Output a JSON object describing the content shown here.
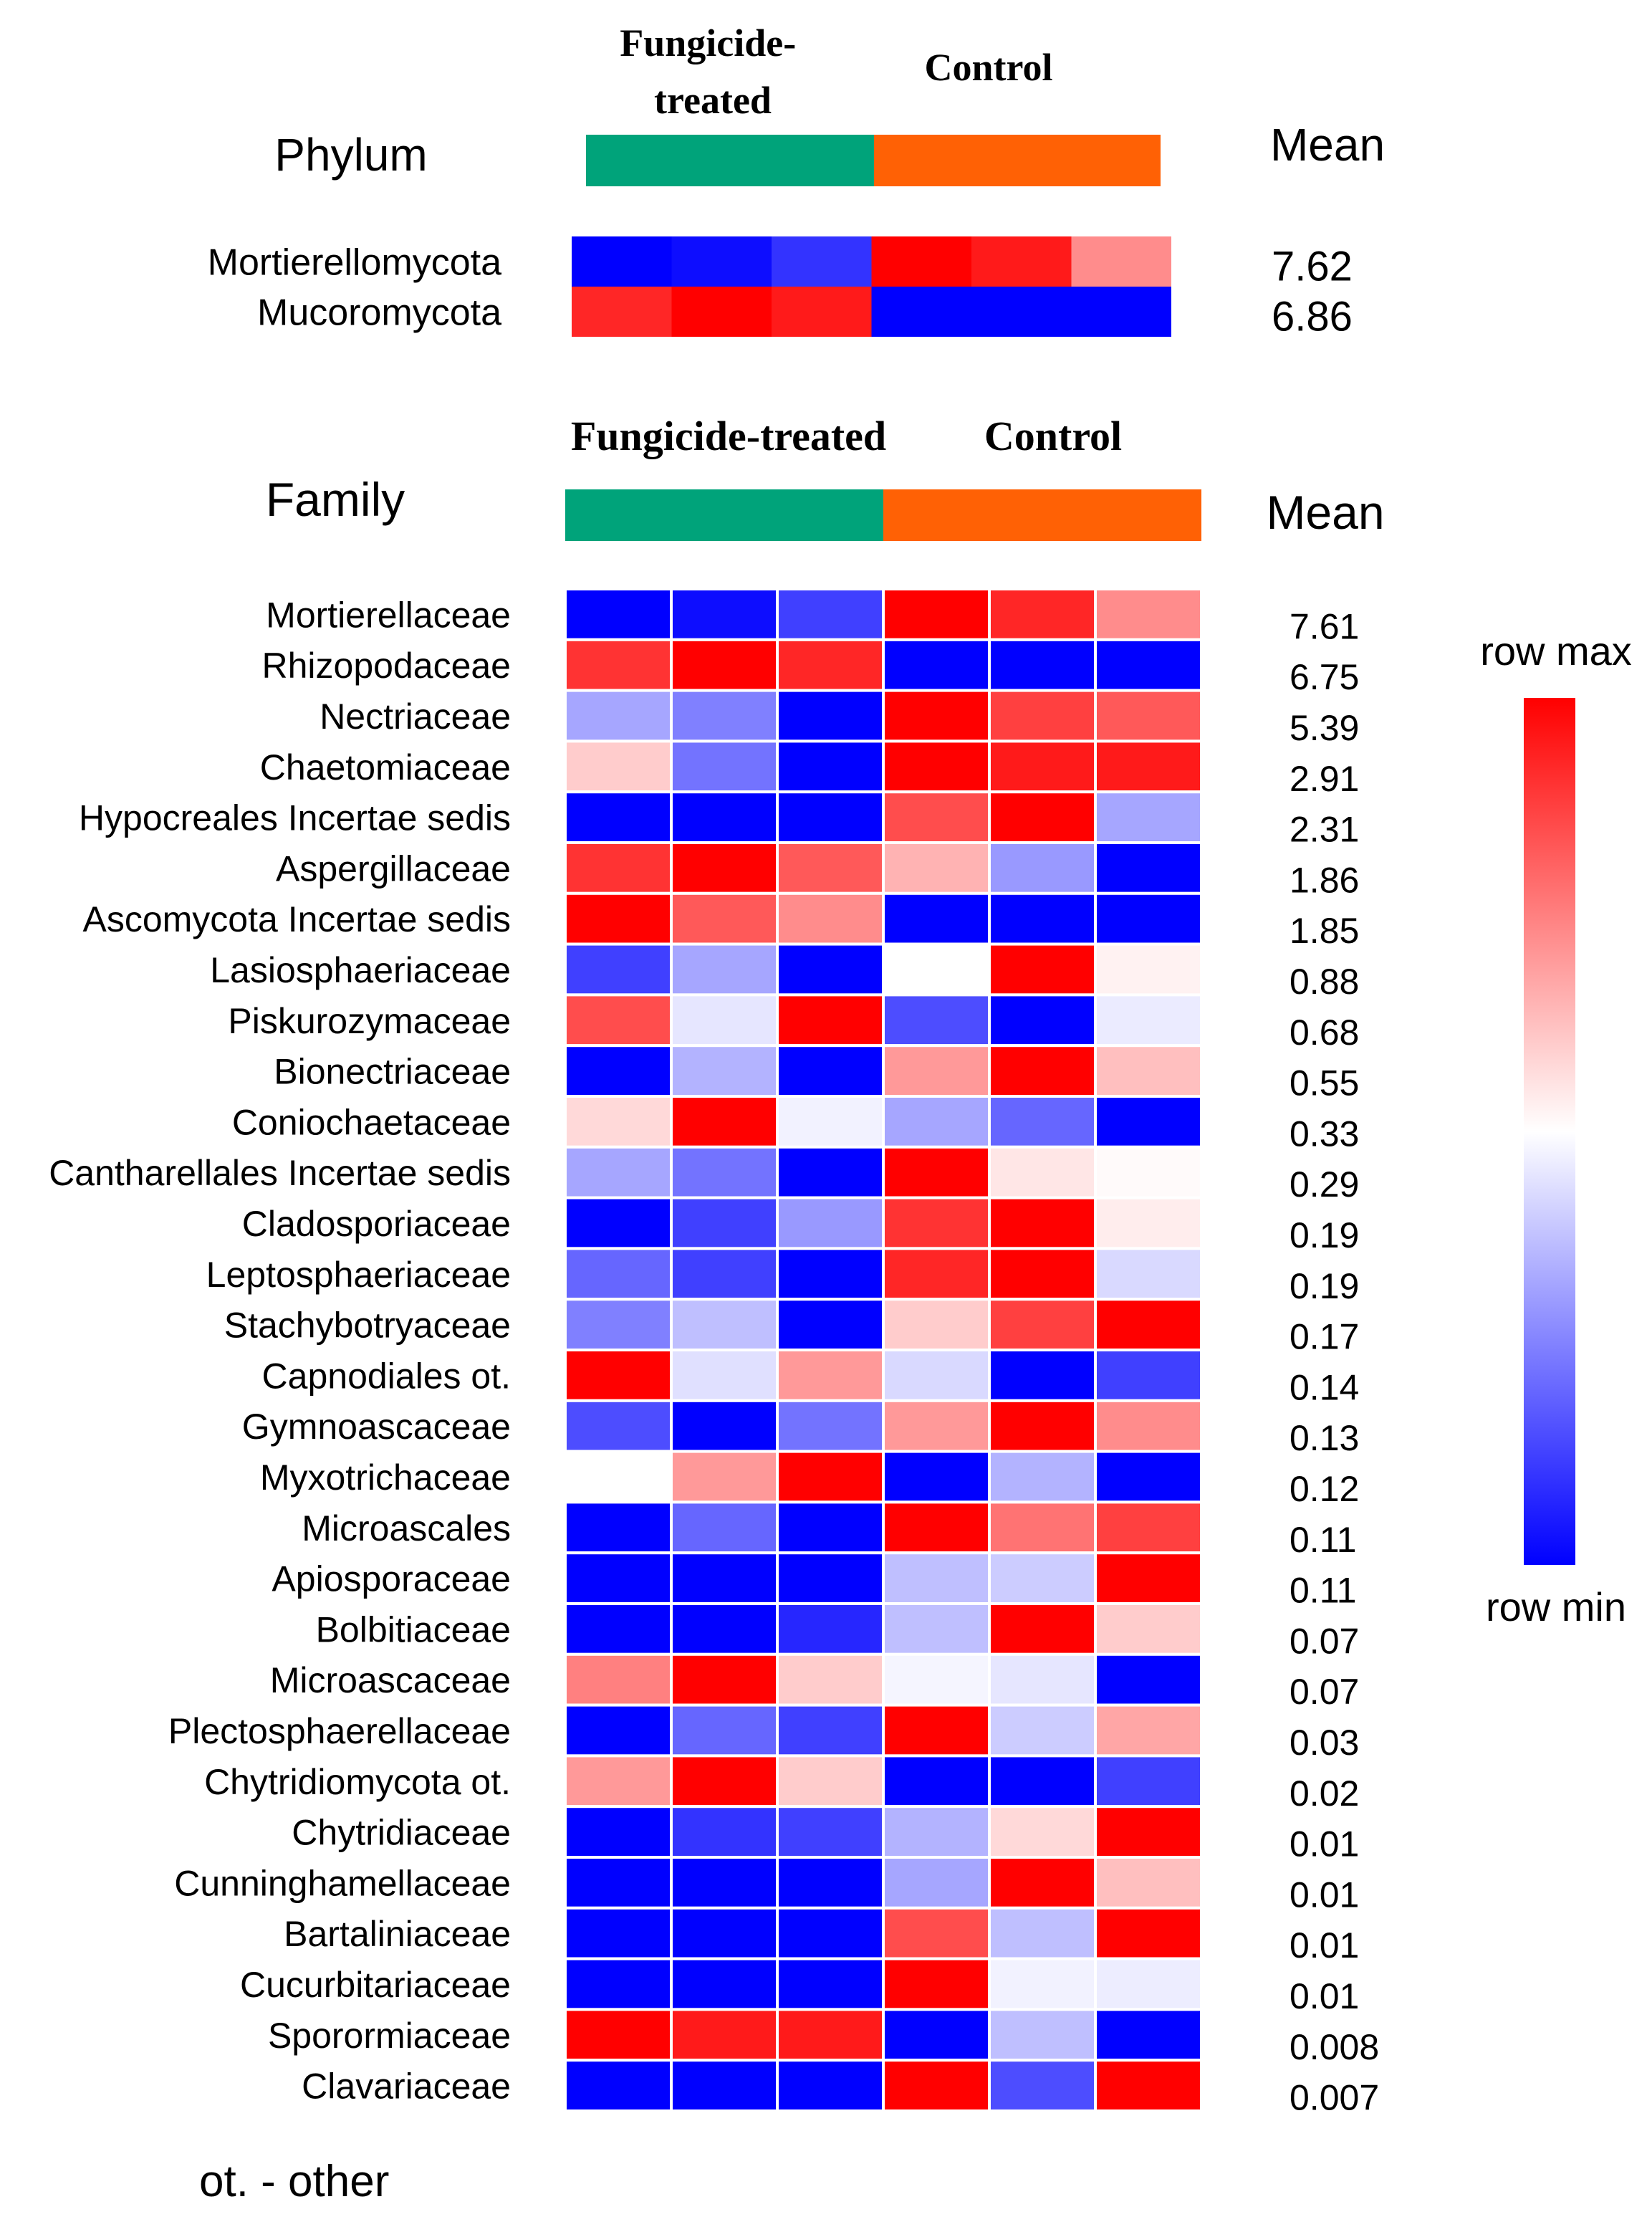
{
  "chart_data": [
    {
      "type": "heatmap",
      "title": "Phylum",
      "group_labels": [
        "Fungicide-\ntreated",
        "Control"
      ],
      "group_colors": [
        "#00A37A",
        "#FF6105"
      ],
      "mean_header": "Mean",
      "value_scale": "row-normalized, -1 = row min, 1 = row max",
      "rows": [
        {
          "label": "Mortierellomycota",
          "mean": "7.62",
          "values": [
            -1,
            -0.95,
            -0.8,
            1,
            0.9,
            0.45
          ]
        },
        {
          "label": "Mucoromycota",
          "mean": "6.86",
          "values": [
            0.85,
            1,
            0.9,
            -1,
            -1,
            -1
          ]
        }
      ]
    },
    {
      "type": "heatmap",
      "title": "Family",
      "group_labels": [
        "Fungicide-treated",
        "Control"
      ],
      "group_colors": [
        "#00A37A",
        "#FF6105"
      ],
      "mean_header": "Mean",
      "value_scale": "row-normalized, -1 = row min, 1 = row max",
      "rows": [
        {
          "label": "Mortierellaceae",
          "mean": "7.61",
          "values": [
            -1,
            -0.95,
            -0.75,
            1,
            0.85,
            0.45
          ]
        },
        {
          "label": "Rhizopodaceae",
          "mean": "6.75",
          "values": [
            0.8,
            1,
            0.85,
            -1,
            -1,
            -1
          ]
        },
        {
          "label": "Nectriaceae",
          "mean": "5.39",
          "values": [
            -0.35,
            -0.5,
            -1,
            1,
            0.75,
            0.65
          ]
        },
        {
          "label": "Chaetomiaceae",
          "mean": "2.91",
          "values": [
            0.2,
            -0.55,
            -1,
            1,
            0.9,
            0.9
          ]
        },
        {
          "label": "Hypocreales Incertae sedis",
          "mean": "2.31",
          "values": [
            -1,
            -1,
            -1,
            0.7,
            1,
            -0.35
          ]
        },
        {
          "label": "Aspergillaceae",
          "mean": "1.86",
          "values": [
            0.8,
            1,
            0.65,
            0.3,
            -0.4,
            -1
          ]
        },
        {
          "label": "Ascomycota Incertae sedis",
          "mean": "1.85",
          "values": [
            1,
            0.65,
            0.45,
            -1,
            -1,
            -1
          ]
        },
        {
          "label": "Lasiosphaeriaceae",
          "mean": "0.88",
          "values": [
            -0.75,
            -0.35,
            -1,
            0,
            1,
            0.05
          ]
        },
        {
          "label": "Piskurozymaceae",
          "mean": "0.68",
          "values": [
            0.7,
            -0.1,
            1,
            -0.7,
            -1,
            -0.08
          ]
        },
        {
          "label": "Bionectriaceae",
          "mean": "0.55",
          "values": [
            -1,
            -0.3,
            -1,
            0.4,
            1,
            0.25
          ]
        },
        {
          "label": "Coniochaetaceae",
          "mean": "0.33",
          "values": [
            0.15,
            1,
            -0.05,
            -0.35,
            -0.6,
            -1
          ]
        },
        {
          "label": "Cantharellales Incertae sedis",
          "mean": "0.29",
          "values": [
            -0.35,
            -0.55,
            -1,
            1,
            0.1,
            0.02
          ]
        },
        {
          "label": "Cladosporiaceae",
          "mean": "0.19",
          "values": [
            -1,
            -0.75,
            -0.4,
            0.8,
            1,
            0.07
          ]
        },
        {
          "label": "Leptosphaeriaceae",
          "mean": "0.19",
          "values": [
            -0.6,
            -0.75,
            -1,
            0.85,
            1,
            -0.15
          ]
        },
        {
          "label": "Stachybotryaceae",
          "mean": "0.17",
          "values": [
            -0.5,
            -0.25,
            -1,
            0.2,
            0.75,
            1
          ]
        },
        {
          "label": "Capnodiales ot.",
          "mean": "0.14",
          "values": [
            1,
            -0.12,
            0.4,
            -0.15,
            -1,
            -0.75
          ]
        },
        {
          "label": "Gymnoascaceae",
          "mean": "0.13",
          "values": [
            -0.7,
            -1,
            -0.55,
            0.4,
            1,
            0.45
          ]
        },
        {
          "label": "Myxotrichaceae",
          "mean": "0.12",
          "values": [
            0,
            0.4,
            1,
            -1,
            -0.3,
            -1
          ]
        },
        {
          "label": "Microascales",
          "mean": "0.11",
          "values": [
            -1,
            -0.6,
            -1,
            1,
            0.55,
            0.75
          ]
        },
        {
          "label": "Apiosporaceae",
          "mean": "0.11",
          "values": [
            -1,
            -1,
            -1,
            -0.25,
            -0.2,
            1
          ]
        },
        {
          "label": "Bolbitiaceae",
          "mean": "0.07",
          "values": [
            -1,
            -1,
            -0.85,
            -0.25,
            1,
            0.2
          ]
        },
        {
          "label": "Microascaceae",
          "mean": "0.07",
          "values": [
            0.5,
            1,
            0.2,
            -0.04,
            -0.1,
            -1
          ]
        },
        {
          "label": "Plectosphaerellaceae",
          "mean": "0.03",
          "values": [
            -1,
            -0.6,
            -0.75,
            1,
            -0.2,
            0.35
          ]
        },
        {
          "label": "Chytridiomycota ot.",
          "mean": "0.02",
          "values": [
            0.4,
            1,
            0.2,
            -1,
            -1,
            -0.75
          ]
        },
        {
          "label": "Chytridiaceae",
          "mean": "0.01",
          "values": [
            -1,
            -0.8,
            -0.75,
            -0.3,
            0.15,
            1
          ]
        },
        {
          "label": "Cunninghamellaceae",
          "mean": "0.01",
          "values": [
            -1,
            -1,
            -1,
            -0.35,
            1,
            0.25
          ]
        },
        {
          "label": "Bartaliniaceae",
          "mean": "0.01",
          "values": [
            -1,
            -1,
            -1,
            0.7,
            -0.25,
            1
          ]
        },
        {
          "label": "Cucurbitariaceae",
          "mean": "0.01",
          "values": [
            -1,
            -1,
            -1,
            1,
            -0.05,
            -0.07
          ]
        },
        {
          "label": "Sporormiaceae",
          "mean": "0.008",
          "values": [
            1,
            0.9,
            0.9,
            -1,
            -0.25,
            -1
          ]
        },
        {
          "label": "Clavariaceae",
          "mean": "0.007",
          "values": [
            -1,
            -1,
            -1,
            1,
            -0.7,
            1
          ]
        }
      ]
    }
  ],
  "legend": {
    "max_label": "row max",
    "min_label": "row min",
    "colors": {
      "max": "#FF0000",
      "mid": "#FFFFFF",
      "min": "#0000FF"
    }
  },
  "footnote": "ot. - other"
}
